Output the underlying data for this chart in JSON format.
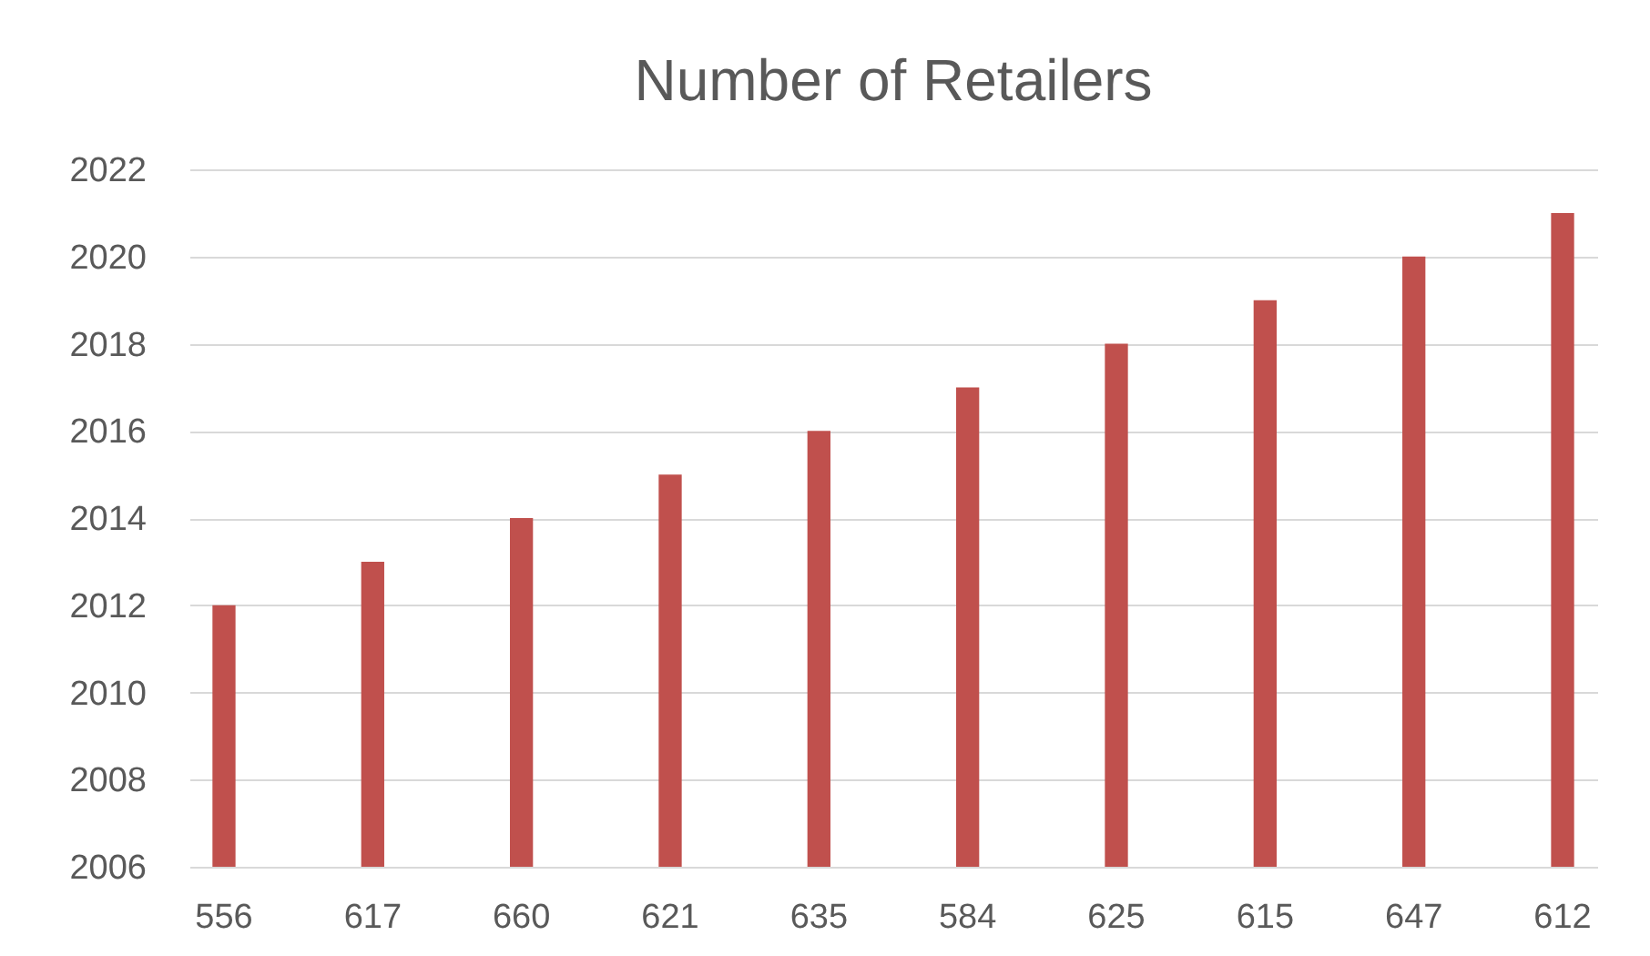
{
  "chart_data": {
    "type": "bar",
    "title": "Number of Retailers",
    "categories": [
      "556",
      "617",
      "660",
      "621",
      "635",
      "584",
      "625",
      "615",
      "647",
      "612"
    ],
    "values": [
      2012,
      2013,
      2014,
      2015,
      2016,
      2017,
      2018,
      2019,
      2020,
      2021
    ],
    "color": "#c0504d",
    "ylim": [
      2006,
      2022
    ],
    "yticks": [
      2006,
      2008,
      2010,
      2012,
      2014,
      2016,
      2018,
      2020,
      2022
    ],
    "grid": "y"
  }
}
